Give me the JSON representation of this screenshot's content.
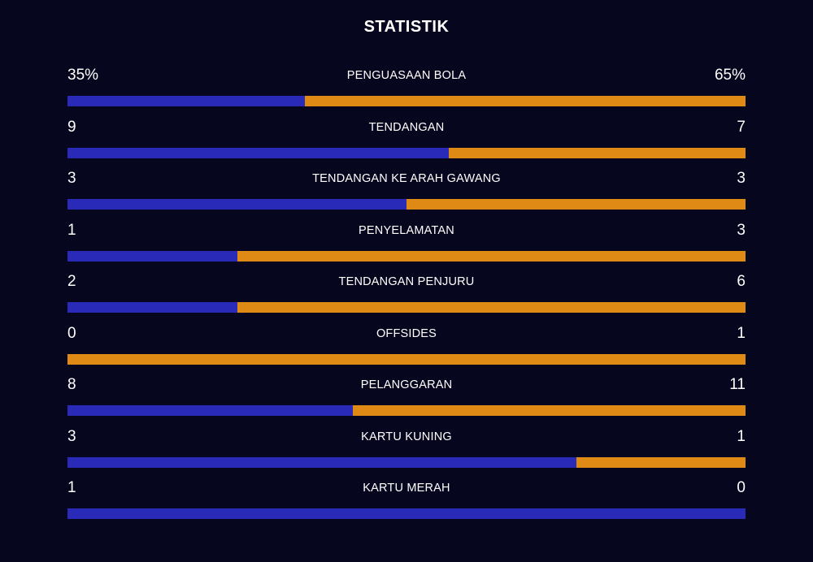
{
  "title": "STATISTIK",
  "colors": {
    "background": "#07061f",
    "home": "#2a2ab8",
    "away": "#de8a14",
    "text": "#ffffff"
  },
  "stats": [
    {
      "label": "PENGUASAAN BOLA",
      "home_text": "35%",
      "away_text": "65%",
      "home": 35,
      "away": 65
    },
    {
      "label": "TENDANGAN",
      "home_text": "9",
      "away_text": "7",
      "home": 9,
      "away": 7
    },
    {
      "label": "TENDANGAN KE ARAH GAWANG",
      "home_text": "3",
      "away_text": "3",
      "home": 3,
      "away": 3
    },
    {
      "label": "PENYELAMATAN",
      "home_text": "1",
      "away_text": "3",
      "home": 1,
      "away": 3
    },
    {
      "label": "TENDANGAN PENJURU",
      "home_text": "2",
      "away_text": "6",
      "home": 2,
      "away": 6
    },
    {
      "label": "OFFSIDES",
      "home_text": "0",
      "away_text": "1",
      "home": 0,
      "away": 1
    },
    {
      "label": "PELANGGARAN",
      "home_text": "8",
      "away_text": "11",
      "home": 8,
      "away": 11
    },
    {
      "label": "KARTU KUNING",
      "home_text": "3",
      "away_text": "1",
      "home": 3,
      "away": 1
    },
    {
      "label": "KARTU MERAH",
      "home_text": "1",
      "away_text": "0",
      "home": 1,
      "away": 0
    }
  ]
}
